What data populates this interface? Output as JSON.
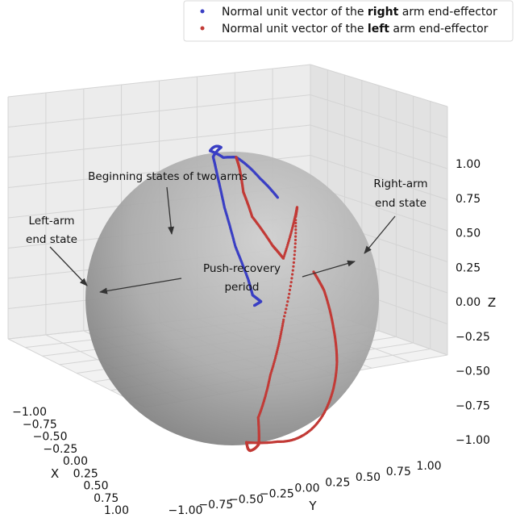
{
  "chart_data": {
    "type": "scatter",
    "projection": "3d",
    "xlabel": "X",
    "ylabel": "Y",
    "zlabel": "Z",
    "xlim": [
      -1.0,
      1.0
    ],
    "ylim": [
      -1.0,
      1.0
    ],
    "zlim": [
      -1.0,
      1.0
    ],
    "x_ticks": [
      "−1.00",
      "−0.75",
      "−0.50",
      "−0.25",
      "0.00",
      "0.25",
      "0.50",
      "0.75",
      "1.00"
    ],
    "y_ticks": [
      "−1.00",
      "−0.75",
      "−0.50",
      "−0.25",
      "0.00",
      "0.25",
      "0.50",
      "0.75",
      "1.00"
    ],
    "z_ticks": [
      "−1.00",
      "−0.75",
      "−0.50",
      "−0.25",
      "0.00",
      "0.25",
      "0.50",
      "0.75",
      "1.00"
    ],
    "grid": true,
    "sphere": "unit sphere (gray)",
    "legend_position": "top-right",
    "series": [
      {
        "name": "Normal unit vector of the right arm end-effector",
        "name_parts": [
          "Normal unit vector of the ",
          "right",
          " arm end-effector"
        ],
        "color": "#3a3fc4",
        "points": [
          [
            -0.89,
            -0.37,
            0.27
          ],
          [
            -0.79,
            -0.43,
            0.43
          ],
          [
            -0.6,
            -0.46,
            0.65
          ],
          [
            -0.55,
            -0.52,
            0.65
          ],
          [
            -0.4,
            -0.5,
            0.76
          ],
          [
            -0.2,
            -0.25,
            0.95
          ],
          [
            0.0,
            -0.15,
            0.99
          ],
          [
            0.2,
            0.05,
            0.98
          ],
          [
            0.38,
            0.25,
            0.89
          ],
          [
            0.52,
            0.45,
            0.72
          ],
          [
            0.58,
            0.6,
            0.55
          ],
          [
            0.6,
            0.65,
            0.46
          ],
          [
            0.58,
            0.7,
            0.42
          ],
          [
            0.62,
            0.68,
            0.4
          ]
        ]
      },
      {
        "name": "Normal unit vector of the left arm end-effector",
        "name_parts": [
          "Normal unit vector of the ",
          "left",
          " arm end-effector"
        ],
        "color": "#c23a36",
        "points": [
          [
            -0.6,
            -0.46,
            0.65
          ],
          [
            -0.68,
            -0.5,
            0.53
          ],
          [
            -0.78,
            -0.55,
            0.3
          ],
          [
            -0.84,
            -0.53,
            0.1
          ],
          [
            -0.9,
            -0.42,
            -0.1
          ],
          [
            -0.92,
            -0.35,
            -0.18
          ],
          [
            -0.94,
            -0.26,
            0.21
          ],
          [
            -0.95,
            -0.28,
            0.13
          ],
          [
            -0.8,
            -0.25,
            -0.55
          ],
          [
            -0.55,
            -0.15,
            -0.82
          ],
          [
            -0.25,
            0.0,
            -0.97
          ],
          [
            0.05,
            0.25,
            -0.97
          ],
          [
            0.25,
            0.35,
            -0.9
          ],
          [
            0.4,
            0.45,
            -0.8
          ],
          [
            0.5,
            0.52,
            -0.69
          ],
          [
            0.3,
            0.6,
            -0.75
          ],
          [
            0.0,
            0.55,
            -0.83
          ],
          [
            -0.4,
            0.42,
            -0.81
          ],
          [
            -0.7,
            0.25,
            -0.67
          ],
          [
            -0.85,
            0.1,
            -0.52
          ],
          [
            -0.94,
            -0.05,
            -0.33
          ],
          [
            -0.96,
            -0.15,
            -0.23
          ]
        ]
      }
    ],
    "annotations": [
      {
        "id": "beginning",
        "lines": [
          "Beginning states of two arms"
        ]
      },
      {
        "id": "right_end",
        "lines": [
          "Right-arm",
          "end state"
        ]
      },
      {
        "id": "left_end",
        "lines": [
          "Left-arm",
          "end state"
        ]
      },
      {
        "id": "push",
        "lines": [
          "Push-recovery",
          "period"
        ]
      }
    ]
  }
}
